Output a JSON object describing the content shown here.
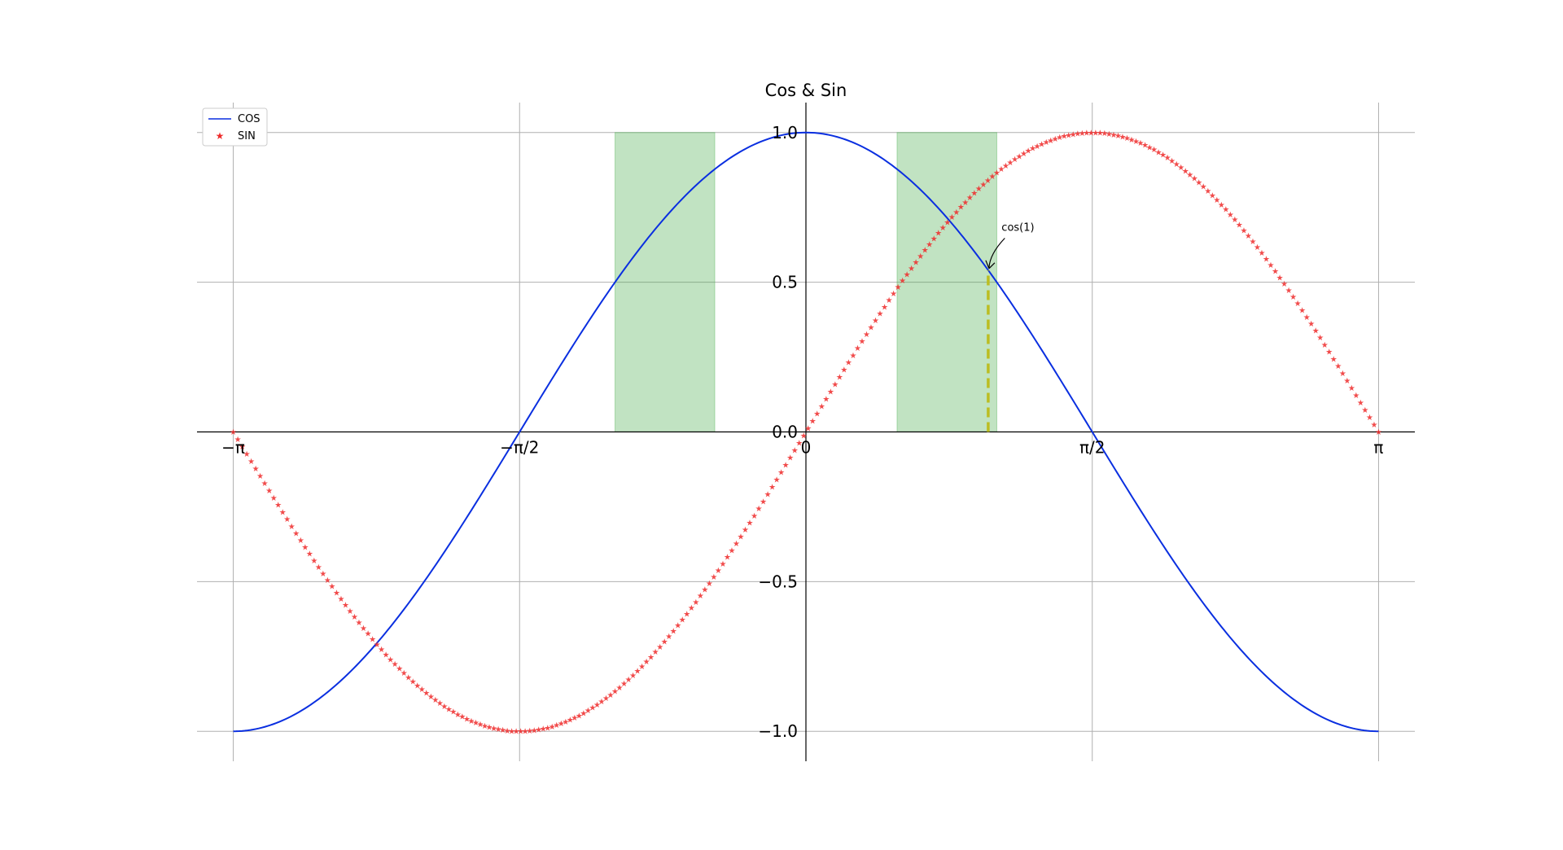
{
  "chart_data": {
    "type": "line",
    "title": "Cos & Sin",
    "xlabel": "",
    "ylabel": "",
    "xlim": [
      -3.3405,
      3.3405
    ],
    "ylim": [
      -1.1,
      1.1
    ],
    "grid": true,
    "legend_position": "top-left",
    "x_ticks": [
      {
        "value": -3.14159,
        "label": "−π"
      },
      {
        "value": -1.5708,
        "label": "−π/2"
      },
      {
        "value": 0,
        "label": "0"
      },
      {
        "value": 1.5708,
        "label": "π/2"
      },
      {
        "value": 3.14159,
        "label": "π"
      }
    ],
    "y_ticks": [
      {
        "value": -1.0,
        "label": "−1.0"
      },
      {
        "value": -0.5,
        "label": "−0.5"
      },
      {
        "value": 0.0,
        "label": "0.0"
      },
      {
        "value": 0.5,
        "label": "0.5"
      },
      {
        "value": 1.0,
        "label": "1.0"
      }
    ],
    "series": [
      {
        "name": "COS",
        "function": "cos",
        "style": "line",
        "color": "#0a2fe0",
        "x_range": [
          -3.14159,
          3.14159
        ]
      },
      {
        "name": "SIN",
        "function": "sin",
        "style": "star-markers",
        "color": "#ee2b2b",
        "x_range": [
          -3.14159,
          3.14159
        ]
      }
    ],
    "fill_regions": [
      {
        "condition": "0.5 < cos(x) < 1 and |x| > 0.5",
        "color": "#4caf50",
        "alpha": 0.35,
        "x_range": [
          -1.0472,
          1.0472
        ]
      }
    ],
    "vertical_marker": {
      "x": 1.0,
      "y_from": 0,
      "y_to": 0.5403,
      "color": "#bcbd22",
      "style": "dashed"
    },
    "annotations": [
      {
        "text": "cos(1)",
        "x": 1.0,
        "y": 0.5403,
        "text_x": 1.1,
        "text_y": 0.65
      }
    ]
  }
}
